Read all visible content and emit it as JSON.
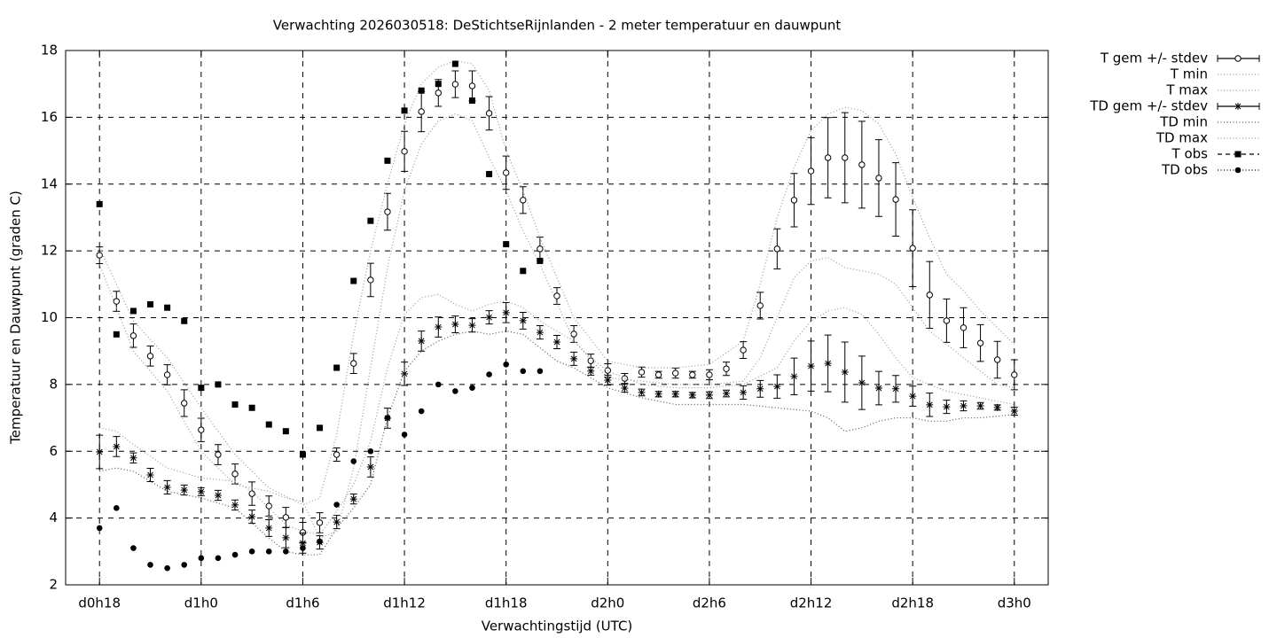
{
  "chart_data": {
    "type": "line",
    "title": "Verwachting 2026030518: DeStichtseRijnlanden - 2 meter temperatuur en dauwpunt",
    "xlabel": "Verwachtingstijd (UTC)",
    "ylabel": "Temperatuur en Dauwpunt (graden C)",
    "xlim": [
      16,
      74
    ],
    "ylim": [
      2,
      18
    ],
    "xticks": [
      {
        "value": 18,
        "label": "d0h18"
      },
      {
        "value": 24,
        "label": "d1h0"
      },
      {
        "value": 30,
        "label": "d1h6"
      },
      {
        "value": 36,
        "label": "d1h12"
      },
      {
        "value": 42,
        "label": "d1h18"
      },
      {
        "value": 48,
        "label": "d2h0"
      },
      {
        "value": 54,
        "label": "d2h6"
      },
      {
        "value": 60,
        "label": "d2h12"
      },
      {
        "value": 66,
        "label": "d2h18"
      },
      {
        "value": 72,
        "label": "d3h0"
      }
    ],
    "yticks": [
      2,
      4,
      6,
      8,
      10,
      12,
      14,
      16,
      18
    ],
    "grid": true,
    "legend": "right",
    "series": [
      {
        "name": "T gem +/- stdev",
        "color": "#000000",
        "marker": "circle",
        "x": [
          18,
          19,
          20,
          21,
          22,
          23,
          24,
          25,
          26,
          27,
          28,
          29,
          30,
          31,
          32,
          33,
          34,
          35,
          36,
          37,
          38,
          39,
          40,
          41,
          42,
          43,
          44,
          45,
          46,
          47,
          48,
          49,
          50,
          51,
          52,
          53,
          54,
          55,
          56,
          57,
          58,
          59,
          60,
          61,
          62,
          63,
          64,
          65,
          66,
          67,
          68,
          69,
          70,
          71,
          72
        ],
        "values": [
          11.87,
          10.49,
          9.46,
          8.85,
          8.29,
          7.44,
          6.64,
          5.9,
          5.32,
          4.73,
          4.36,
          4.02,
          3.57,
          3.86,
          5.9,
          8.63,
          11.13,
          13.17,
          14.98,
          16.17,
          16.73,
          16.99,
          16.94,
          16.12,
          14.34,
          13.52,
          12.06,
          10.65,
          9.51,
          8.71,
          8.42,
          8.18,
          8.37,
          8.29,
          8.34,
          8.29,
          8.29,
          8.47,
          9.03,
          10.36,
          12.06,
          13.52,
          14.39,
          14.79,
          14.79,
          14.58,
          14.18,
          13.54,
          12.08,
          10.68,
          9.91,
          9.7,
          9.24,
          8.74,
          8.29
        ],
        "errors": [
          0.25,
          0.3,
          0.35,
          0.3,
          0.3,
          0.4,
          0.35,
          0.3,
          0.3,
          0.35,
          0.3,
          0.3,
          0.3,
          0.3,
          0.2,
          0.3,
          0.5,
          0.55,
          0.6,
          0.6,
          0.4,
          0.4,
          0.45,
          0.5,
          0.5,
          0.4,
          0.35,
          0.25,
          0.25,
          0.2,
          0.2,
          0.15,
          0.15,
          0.1,
          0.15,
          0.1,
          0.15,
          0.2,
          0.25,
          0.4,
          0.6,
          0.8,
          1.0,
          1.2,
          1.35,
          1.3,
          1.15,
          1.1,
          1.15,
          1.0,
          0.65,
          0.6,
          0.55,
          0.55,
          0.45
        ]
      },
      {
        "name": "T min",
        "color": "#999999",
        "marker": "none",
        "x": [
          18,
          20,
          22,
          24,
          26,
          28,
          29,
          30,
          31,
          32,
          33,
          34,
          35,
          36,
          37,
          38,
          39,
          40,
          41,
          42,
          43,
          44,
          46,
          48,
          50,
          52,
          54,
          56,
          57,
          58,
          59,
          60,
          61,
          62,
          63,
          64,
          65,
          66,
          67,
          68,
          69,
          70,
          71,
          72
        ],
        "values": [
          11.6,
          9.0,
          7.8,
          6.0,
          5.0,
          4.8,
          4.6,
          4.5,
          3.4,
          3.6,
          5.5,
          8.5,
          11.5,
          13.8,
          15.2,
          15.9,
          16.1,
          15.9,
          14.8,
          13.8,
          12.6,
          11.6,
          9.3,
          8.2,
          8.1,
          8.0,
          8.0,
          8.1,
          8.8,
          10.0,
          11.2,
          11.7,
          11.8,
          11.5,
          11.4,
          11.3,
          11.0,
          10.3,
          9.6,
          9.2,
          8.8,
          8.4,
          8.0,
          7.9
        ]
      },
      {
        "name": "T max",
        "color": "#999999",
        "marker": "none",
        "x": [
          18,
          20,
          22,
          24,
          26,
          28,
          30,
          31,
          32,
          33,
          34,
          35,
          36,
          37,
          38,
          39,
          40,
          41,
          42,
          43,
          44,
          46,
          48,
          50,
          52,
          54,
          56,
          57,
          58,
          59,
          60,
          61,
          62,
          63,
          64,
          65,
          66,
          67,
          68,
          69,
          70,
          71,
          72
        ],
        "values": [
          12.1,
          9.9,
          8.8,
          7.3,
          5.9,
          4.9,
          4.4,
          4.6,
          6.5,
          9.5,
          12.0,
          14.0,
          15.8,
          17.0,
          17.5,
          17.7,
          17.6,
          16.8,
          15.0,
          13.8,
          12.4,
          10.0,
          8.7,
          8.5,
          8.5,
          8.6,
          9.3,
          11.0,
          13.0,
          14.5,
          15.6,
          16.1,
          16.3,
          16.2,
          15.8,
          14.9,
          13.6,
          12.4,
          11.3,
          10.8,
          10.2,
          9.7,
          9.2
        ]
      },
      {
        "name": "TD gem +/- stdev",
        "color": "#000000",
        "marker": "star",
        "x": [
          18,
          19,
          20,
          21,
          22,
          23,
          24,
          25,
          26,
          27,
          28,
          29,
          30,
          31,
          32,
          33,
          34,
          35,
          36,
          37,
          38,
          39,
          40,
          41,
          42,
          43,
          44,
          45,
          46,
          47,
          48,
          49,
          50,
          51,
          52,
          53,
          54,
          55,
          56,
          57,
          58,
          59,
          60,
          61,
          62,
          63,
          64,
          65,
          66,
          67,
          68,
          69,
          70,
          71,
          72
        ],
        "values": [
          5.98,
          6.14,
          5.8,
          5.29,
          4.92,
          4.84,
          4.79,
          4.68,
          4.39,
          4.04,
          3.7,
          3.41,
          3.25,
          3.27,
          3.88,
          4.57,
          5.53,
          6.99,
          8.32,
          9.3,
          9.72,
          9.8,
          9.77,
          10.01,
          10.15,
          9.91,
          9.56,
          9.27,
          8.77,
          8.4,
          8.13,
          7.89,
          7.76,
          7.71,
          7.71,
          7.68,
          7.68,
          7.73,
          7.76,
          7.87,
          7.94,
          8.24,
          8.55,
          8.63,
          8.37,
          8.05,
          7.89,
          7.87,
          7.65,
          7.39,
          7.33,
          7.36,
          7.36,
          7.31,
          7.2
        ],
        "errors": [
          0.5,
          0.3,
          0.15,
          0.2,
          0.2,
          0.15,
          0.12,
          0.15,
          0.15,
          0.2,
          0.25,
          0.3,
          0.3,
          0.2,
          0.2,
          0.15,
          0.3,
          0.3,
          0.35,
          0.3,
          0.3,
          0.25,
          0.2,
          0.2,
          0.3,
          0.25,
          0.2,
          0.2,
          0.2,
          0.12,
          0.15,
          0.12,
          0.1,
          0.08,
          0.08,
          0.08,
          0.1,
          0.1,
          0.2,
          0.25,
          0.35,
          0.55,
          0.75,
          0.85,
          0.9,
          0.8,
          0.5,
          0.4,
          0.3,
          0.35,
          0.2,
          0.15,
          0.1,
          0.08,
          0.12
        ]
      },
      {
        "name": "TD min",
        "color": "#555555",
        "marker": "none",
        "x": [
          18,
          19,
          20,
          22,
          24,
          26,
          28,
          29,
          30,
          31,
          32,
          33,
          34,
          35,
          36,
          37,
          38,
          39,
          40,
          41,
          42,
          43,
          44,
          45,
          46,
          47,
          48,
          50,
          52,
          54,
          56,
          58,
          60,
          61,
          62,
          63,
          64,
          65,
          66,
          67,
          68,
          69,
          70,
          72
        ],
        "values": [
          5.4,
          5.5,
          5.4,
          4.8,
          4.6,
          4.3,
          3.4,
          3.0,
          2.9,
          2.9,
          3.7,
          4.3,
          5.0,
          7.0,
          8.4,
          9.0,
          9.3,
          9.5,
          9.6,
          9.5,
          9.6,
          9.5,
          9.1,
          8.7,
          8.5,
          8.2,
          7.9,
          7.6,
          7.4,
          7.4,
          7.4,
          7.3,
          7.2,
          7.0,
          6.6,
          6.7,
          6.9,
          7.0,
          7.0,
          6.9,
          6.9,
          7.0,
          7.0,
          7.1
        ]
      },
      {
        "name": "TD max",
        "color": "#999999",
        "marker": "none",
        "x": [
          18,
          19,
          20,
          22,
          24,
          26,
          27,
          28,
          29,
          30,
          31,
          32,
          33,
          34,
          35,
          36,
          37,
          38,
          39,
          40,
          41,
          42,
          43,
          44,
          45,
          46,
          47,
          48,
          50,
          52,
          54,
          56,
          58,
          59,
          60,
          61,
          62,
          63,
          64,
          65,
          66,
          68,
          70,
          72
        ],
        "values": [
          6.7,
          6.6,
          6.2,
          5.5,
          5.2,
          5.1,
          4.8,
          4.3,
          3.8,
          3.6,
          3.5,
          4.2,
          5.0,
          6.3,
          8.5,
          10.1,
          10.6,
          10.7,
          10.4,
          10.2,
          10.4,
          10.5,
          10.3,
          9.9,
          9.6,
          9.3,
          8.8,
          8.4,
          8.0,
          7.9,
          7.9,
          8.0,
          8.5,
          9.3,
          9.9,
          10.2,
          10.3,
          10.1,
          9.5,
          8.8,
          8.2,
          7.8,
          7.6,
          7.4
        ]
      },
      {
        "name": "T obs",
        "color": "#000000",
        "marker": "square",
        "x": [
          18,
          19,
          20,
          21,
          22,
          23,
          24,
          25,
          26,
          27,
          28,
          29,
          30,
          31,
          32,
          33,
          34,
          35,
          36,
          37,
          38,
          39,
          40,
          41,
          42,
          43,
          44
        ],
        "values": [
          13.4,
          9.5,
          10.2,
          10.4,
          10.3,
          9.9,
          7.9,
          8.0,
          7.4,
          7.3,
          6.8,
          6.6,
          5.9,
          6.7,
          8.5,
          11.1,
          12.9,
          14.7,
          16.2,
          16.8,
          17.0,
          17.6,
          16.5,
          14.3,
          12.2,
          11.4,
          11.7
        ]
      },
      {
        "name": "TD obs",
        "color": "#000000",
        "marker": "dot",
        "x": [
          18,
          19,
          20,
          21,
          22,
          23,
          24,
          25,
          26,
          27,
          28,
          29,
          30,
          31,
          32,
          33,
          34,
          35,
          36,
          37,
          38,
          39,
          40,
          41,
          42,
          43,
          44
        ],
        "values": [
          3.7,
          4.3,
          3.1,
          2.6,
          2.5,
          2.6,
          2.8,
          2.8,
          2.9,
          3.0,
          3.0,
          3.0,
          3.1,
          3.3,
          4.4,
          5.7,
          6.0,
          7.0,
          6.5,
          7.2,
          8.0,
          7.8,
          7.9,
          8.3,
          8.6,
          8.4,
          8.4
        ]
      }
    ]
  }
}
